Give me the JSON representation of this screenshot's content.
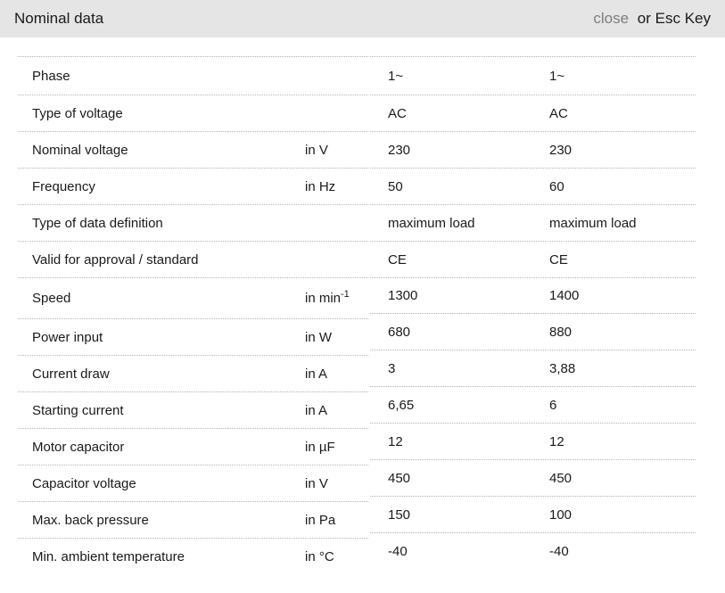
{
  "header": {
    "title": "Nominal data",
    "close_label": "close",
    "esc_text": "or Esc Key"
  },
  "colors": {
    "header_bg": "#e5e5e5",
    "close_link": "#7d7d7d",
    "text": "#1a1a1a",
    "divider": "#b3b3b3"
  },
  "table": {
    "rows": [
      {
        "label": "Phase",
        "unit": "",
        "v1": "1~",
        "v2": "1~"
      },
      {
        "label": "Type of voltage",
        "unit": "",
        "v1": "AC",
        "v2": "AC"
      },
      {
        "label": "Nominal voltage",
        "unit": "in V",
        "v1": "230",
        "v2": "230"
      },
      {
        "label": "Frequency",
        "unit": "in Hz",
        "v1": "50",
        "v2": "60"
      },
      {
        "label": "Type of data definition",
        "unit": "",
        "v1": "maximum load",
        "v2": "maximum load"
      },
      {
        "label": "Valid for approval / standard",
        "unit": "",
        "v1": "CE",
        "v2": "CE"
      },
      {
        "label": "Speed",
        "unit": "in min",
        "unit_sup": "-1",
        "v1": "1300",
        "v2": "1400"
      },
      {
        "label": "Power input",
        "unit": "in W",
        "v1": "680",
        "v2": "880"
      },
      {
        "label": "Current draw",
        "unit": "in A",
        "v1": "3",
        "v2": "3,88"
      },
      {
        "label": "Starting current",
        "unit": "in A",
        "v1": "6,65",
        "v2": "6"
      },
      {
        "label": "Motor capacitor",
        "unit": "in µF",
        "v1": "12",
        "v2": "12"
      },
      {
        "label": "Capacitor voltage",
        "unit": "in V",
        "v1": "450",
        "v2": "450"
      },
      {
        "label": "Max. back pressure",
        "unit": "in Pa",
        "v1": "150",
        "v2": "100"
      },
      {
        "label": "Min. ambient temperature",
        "unit": "in °C",
        "v1": "-40",
        "v2": "-40"
      }
    ]
  }
}
